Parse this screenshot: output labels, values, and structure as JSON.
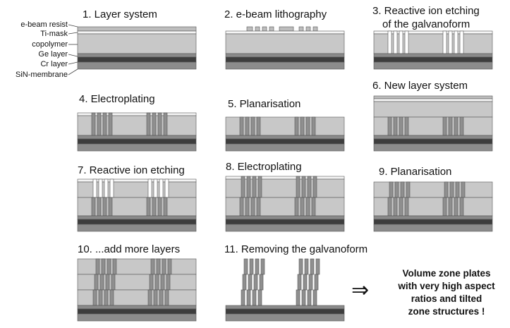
{
  "steps": [
    {
      "label": "1. Layer system"
    },
    {
      "label": "2. e-beam lithography"
    },
    {
      "label": "3. Reactive ion etching"
    },
    {
      "label": "4. Electroplating"
    },
    {
      "label": "5. Planarisation"
    },
    {
      "label": "6. New layer system"
    },
    {
      "label": "7. Reactive ion etching"
    },
    {
      "label": "8. Electroplating"
    },
    {
      "label": "9. Planarisation"
    },
    {
      "label": "10. ...add  more layers"
    },
    {
      "label": "11. Removing the galvanoform"
    }
  ],
  "step3_line2": "of the galvanoform",
  "layer_labels": [
    "e-beam resist",
    "Ti-mask",
    "copolymer",
    "Ge layer",
    "Cr layer",
    "SiN-membrane"
  ],
  "result": {
    "arrow": "⇒",
    "lines": [
      "Volume zone plates",
      "with very high aspect",
      "ratios and tilted",
      "zone structures !"
    ]
  },
  "colors": {
    "resist": "#bdbdbd",
    "ti_mask": "#f5f5f5",
    "copolymer": "#c8c8c8",
    "ge": "#8a8a8a",
    "cr": "#3d3d3d",
    "sin": "#8c8c8c",
    "metal": "#8f8f8f",
    "outline": "#555555"
  }
}
